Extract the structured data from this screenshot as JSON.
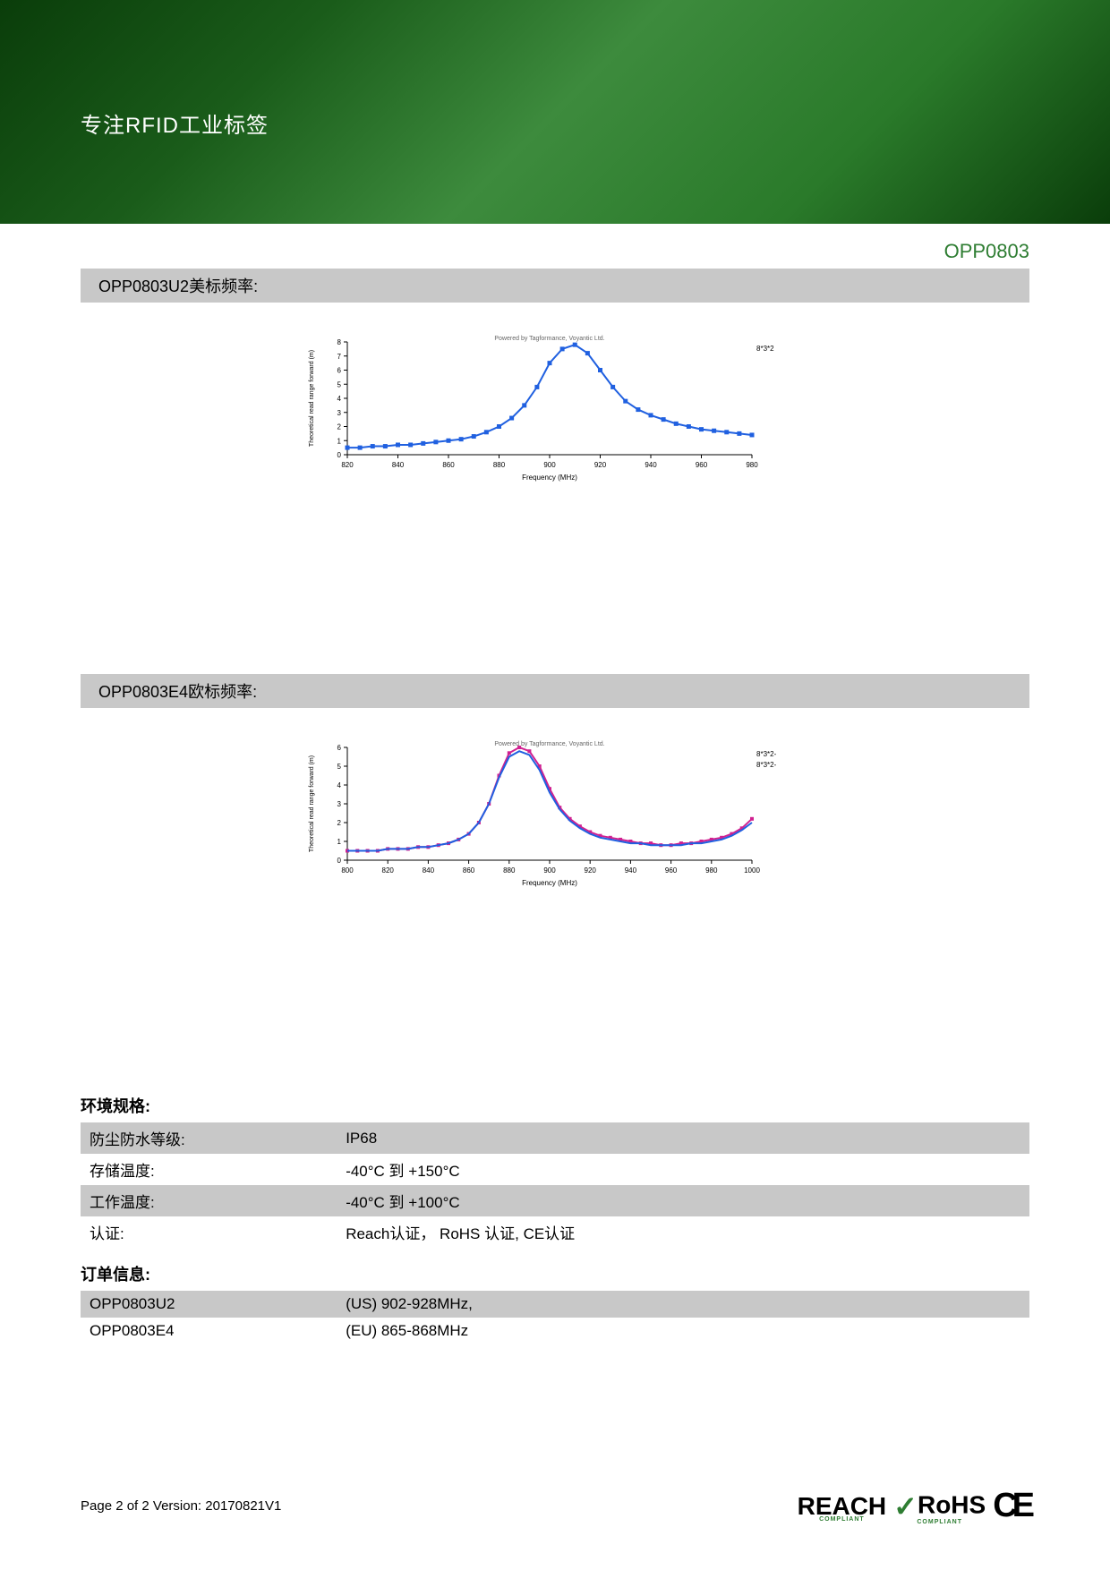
{
  "banner": {
    "title": "专注RFID工业标签"
  },
  "product": {
    "code": "OPP0803"
  },
  "section1": {
    "title": "OPP0803U2美标频率:",
    "chart": {
      "type": "line",
      "watermark": "Powered by Tagformance, Voyantic Ltd.",
      "xlabel": "Frequency (MHz)",
      "ylabel": "Theoretical read range forward (m)",
      "xlim": [
        820,
        980
      ],
      "xtick_step": 20,
      "ylim": [
        0,
        8
      ],
      "ytick_step": 1,
      "legend": [
        "8*3*2"
      ],
      "series": [
        {
          "color": "#2060e0",
          "marker": "square",
          "marker_size": 5,
          "line_width": 2,
          "x": [
            820,
            825,
            830,
            835,
            840,
            845,
            850,
            855,
            860,
            865,
            870,
            875,
            880,
            885,
            890,
            895,
            900,
            905,
            910,
            915,
            920,
            925,
            930,
            935,
            940,
            945,
            950,
            955,
            960,
            965,
            970,
            975,
            980
          ],
          "y": [
            0.5,
            0.5,
            0.6,
            0.6,
            0.7,
            0.7,
            0.8,
            0.9,
            1.0,
            1.1,
            1.3,
            1.6,
            2.0,
            2.6,
            3.5,
            4.8,
            6.5,
            7.5,
            7.8,
            7.2,
            6.0,
            4.8,
            3.8,
            3.2,
            2.8,
            2.5,
            2.2,
            2.0,
            1.8,
            1.7,
            1.6,
            1.5,
            1.4
          ]
        }
      ],
      "background_color": "#ffffff",
      "axis_color": "#000000",
      "label_fontsize": 8
    }
  },
  "section2": {
    "title": "OPP0803E4欧标频率:",
    "chart": {
      "type": "line",
      "watermark": "Powered by Tagformance, Voyantic Ltd.",
      "xlabel": "Frequency (MHz)",
      "ylabel": "Theoretical read range forward (m)",
      "xlim": [
        800,
        1000
      ],
      "xtick_step": 20,
      "ylim": [
        0,
        6
      ],
      "ytick_step": 1,
      "legend": [
        "8*3*2-",
        "8*3*2-"
      ],
      "series": [
        {
          "color": "#d02090",
          "marker": "square",
          "marker_size": 4,
          "line_width": 2,
          "x": [
            800,
            805,
            810,
            815,
            820,
            825,
            830,
            835,
            840,
            845,
            850,
            855,
            860,
            865,
            870,
            875,
            880,
            885,
            890,
            895,
            900,
            905,
            910,
            915,
            920,
            925,
            930,
            935,
            940,
            945,
            950,
            955,
            960,
            965,
            970,
            975,
            980,
            985,
            990,
            995,
            1000
          ],
          "y": [
            0.5,
            0.5,
            0.5,
            0.5,
            0.6,
            0.6,
            0.6,
            0.7,
            0.7,
            0.8,
            0.9,
            1.1,
            1.4,
            2.0,
            3.0,
            4.5,
            5.7,
            6.0,
            5.8,
            5.0,
            3.8,
            2.8,
            2.2,
            1.8,
            1.5,
            1.3,
            1.2,
            1.1,
            1.0,
            0.9,
            0.9,
            0.8,
            0.8,
            0.9,
            0.9,
            1.0,
            1.1,
            1.2,
            1.4,
            1.7,
            2.2
          ]
        },
        {
          "color": "#2060e0",
          "marker": "none",
          "line_width": 2,
          "x": [
            800,
            805,
            810,
            815,
            820,
            825,
            830,
            835,
            840,
            845,
            850,
            855,
            860,
            865,
            870,
            875,
            880,
            885,
            890,
            895,
            900,
            905,
            910,
            915,
            920,
            925,
            930,
            935,
            940,
            945,
            950,
            955,
            960,
            965,
            970,
            975,
            980,
            985,
            990,
            995,
            1000
          ],
          "y": [
            0.5,
            0.5,
            0.5,
            0.5,
            0.6,
            0.6,
            0.6,
            0.7,
            0.7,
            0.8,
            0.9,
            1.1,
            1.4,
            2.0,
            3.0,
            4.4,
            5.5,
            5.8,
            5.6,
            4.8,
            3.6,
            2.7,
            2.1,
            1.7,
            1.4,
            1.2,
            1.1,
            1.0,
            0.9,
            0.9,
            0.8,
            0.8,
            0.8,
            0.8,
            0.9,
            0.9,
            1.0,
            1.1,
            1.3,
            1.6,
            2.0
          ]
        }
      ],
      "background_color": "#ffffff",
      "axis_color": "#000000",
      "label_fontsize": 8
    }
  },
  "env_spec": {
    "title": "环境规格:",
    "rows": [
      {
        "label": "防尘防水等级:",
        "value": "IP68",
        "alt": true
      },
      {
        "label": "存储温度:",
        "value": "-40°C 到 +150°C",
        "alt": false
      },
      {
        "label": "工作温度:",
        "value": "-40°C 到 +100°C",
        "alt": true
      },
      {
        "label": "认证:",
        "value": "Reach认证， RoHS 认证, CE认证",
        "alt": false
      }
    ]
  },
  "order_info": {
    "title": "订单信息:",
    "rows": [
      {
        "label": "OPP0803U2",
        "value": "(US) 902-928MHz,",
        "alt": true
      },
      {
        "label": "OPP0803E4",
        "value": "(EU) 865-868MHz",
        "alt": false
      }
    ]
  },
  "footer": {
    "page_text": "Page 2 of 2  Version: 20170821V1",
    "reach_text": "REACH",
    "reach_sub": "COMPLIANT",
    "rohs_text": "RoHS",
    "rohs_sub": "COMPLIANT",
    "ce_text": "CE"
  }
}
